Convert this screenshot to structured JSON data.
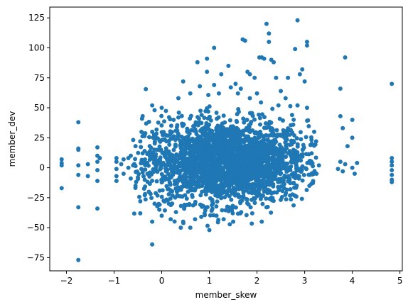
{
  "chart_data": {
    "type": "scatter",
    "title": "",
    "xlabel": "member_skew",
    "ylabel": "member_dev",
    "xlim": [
      -2.35,
      5.05
    ],
    "ylim": [
      -86,
      134
    ],
    "xticks": [
      -2,
      -1,
      0,
      1,
      2,
      3,
      4,
      5
    ],
    "yticks": [
      -75,
      -50,
      -25,
      0,
      25,
      50,
      75,
      100,
      125
    ],
    "grid": false,
    "legend": "none",
    "point_color": "#1f77b4",
    "series": [
      {
        "points": [
          [
            -2.1,
            7
          ],
          [
            -2.1,
            4
          ],
          [
            -2.1,
            2
          ],
          [
            -2.1,
            -17
          ],
          [
            -1.75,
            38
          ],
          [
            -1.75,
            16
          ],
          [
            -1.75,
            15
          ],
          [
            -1.75,
            2
          ],
          [
            -1.75,
            -6
          ],
          [
            -1.75,
            -33
          ],
          [
            -1.75,
            -77
          ],
          [
            -1.55,
            3
          ],
          [
            -1.55,
            -7
          ],
          [
            -1.35,
            17
          ],
          [
            -1.35,
            10
          ],
          [
            -1.35,
            5
          ],
          [
            -1.35,
            -2
          ],
          [
            -1.35,
            -11
          ],
          [
            -1.35,
            -34
          ],
          [
            -1.3,
            8
          ],
          [
            -0.95,
            8
          ],
          [
            -0.95,
            5
          ],
          [
            -0.95,
            -1
          ],
          [
            -0.95,
            -7
          ],
          [
            -0.95,
            -11
          ],
          [
            -0.85,
            3
          ],
          [
            -0.8,
            -5
          ],
          [
            -0.8,
            7
          ],
          [
            -0.7,
            0
          ],
          [
            -0.7,
            8
          ],
          [
            -0.65,
            -9
          ],
          [
            -0.65,
            10
          ],
          [
            -0.6,
            2
          ],
          [
            -0.55,
            -15
          ],
          [
            -0.55,
            18
          ],
          [
            -0.5,
            -8
          ],
          [
            -0.45,
            -38
          ],
          [
            -0.45,
            22
          ],
          [
            -0.45,
            -28
          ],
          [
            -0.4,
            43
          ],
          [
            -0.4,
            12
          ],
          [
            -0.35,
            -22
          ],
          [
            -0.3,
            -5
          ],
          [
            -0.2,
            -64
          ],
          [
            -0.2,
            52
          ],
          [
            -0.2,
            30
          ],
          [
            -0.2,
            -45
          ],
          [
            -0.15,
            48
          ],
          [
            -0.15,
            -30
          ],
          [
            -0.1,
            15
          ],
          [
            -0.05,
            -35
          ],
          [
            0.0,
            50
          ],
          [
            0.0,
            -40
          ],
          [
            0.05,
            -28
          ],
          [
            0.1,
            22
          ],
          [
            0.15,
            -30
          ],
          [
            0.2,
            -8
          ],
          [
            0.2,
            35
          ],
          [
            0.25,
            40
          ],
          [
            0.3,
            -37
          ],
          [
            0.35,
            58
          ],
          [
            0.4,
            -50
          ],
          [
            0.45,
            -45
          ],
          [
            0.45,
            72
          ],
          [
            0.5,
            25
          ],
          [
            0.6,
            -50
          ],
          [
            0.6,
            62
          ],
          [
            0.7,
            -43
          ],
          [
            0.75,
            88
          ],
          [
            0.8,
            68
          ],
          [
            0.9,
            -38
          ],
          [
            0.95,
            80
          ],
          [
            0.95,
            91
          ],
          [
            1.0,
            -52
          ],
          [
            1.1,
            100
          ],
          [
            1.1,
            69
          ],
          [
            1.15,
            -40
          ],
          [
            1.2,
            62
          ],
          [
            1.25,
            78
          ],
          [
            1.3,
            -43
          ],
          [
            1.4,
            85
          ],
          [
            1.45,
            67
          ],
          [
            1.5,
            -45
          ],
          [
            1.55,
            70
          ],
          [
            1.6,
            62
          ],
          [
            1.65,
            -38
          ],
          [
            1.7,
            107
          ],
          [
            1.75,
            106
          ],
          [
            1.8,
            80
          ],
          [
            1.85,
            78
          ],
          [
            1.85,
            58
          ],
          [
            1.9,
            -38
          ],
          [
            1.95,
            75
          ],
          [
            2.0,
            62
          ],
          [
            2.05,
            92
          ],
          [
            2.1,
            92
          ],
          [
            2.15,
            91
          ],
          [
            2.2,
            120
          ],
          [
            2.25,
            112
          ],
          [
            2.25,
            105
          ],
          [
            2.3,
            90
          ],
          [
            2.1,
            -45
          ],
          [
            2.2,
            -33
          ],
          [
            2.3,
            -25
          ],
          [
            2.35,
            88
          ],
          [
            2.4,
            75
          ],
          [
            2.45,
            52
          ],
          [
            2.5,
            64
          ],
          [
            2.6,
            58
          ],
          [
            2.65,
            75
          ],
          [
            2.7,
            -18
          ],
          [
            2.8,
            99
          ],
          [
            2.85,
            123
          ],
          [
            2.85,
            52
          ],
          [
            2.9,
            78
          ],
          [
            2.95,
            82
          ],
          [
            3.0,
            72
          ],
          [
            3.05,
            105
          ],
          [
            3.05,
            102
          ],
          [
            3.05,
            50
          ],
          [
            3.1,
            -15
          ],
          [
            3.15,
            20
          ],
          [
            3.2,
            30
          ],
          [
            3.25,
            -5
          ],
          [
            3.3,
            2
          ],
          [
            3.75,
            66
          ],
          [
            3.75,
            43
          ],
          [
            3.8,
            33
          ],
          [
            3.85,
            92
          ],
          [
            3.9,
            18
          ],
          [
            3.7,
            -1
          ],
          [
            3.75,
            5
          ],
          [
            3.8,
            -3
          ],
          [
            3.85,
            3
          ],
          [
            4.0,
            40
          ],
          [
            4.0,
            25
          ],
          [
            4.0,
            0
          ],
          [
            4.05,
            -5
          ],
          [
            4.1,
            4
          ],
          [
            4.83,
            70
          ],
          [
            4.83,
            8
          ],
          [
            4.83,
            5
          ],
          [
            4.83,
            2
          ],
          [
            4.83,
            -2
          ],
          [
            4.83,
            -6
          ],
          [
            4.83,
            -10
          ],
          [
            4.83,
            -12
          ]
        ]
      }
    ],
    "cloud": {
      "count": 2600,
      "x_center": 1.35,
      "x_spread": 0.85,
      "y_center": 5,
      "y_spread": 17,
      "x_range": [
        -0.6,
        3.25
      ],
      "y_range": [
        -52,
        70
      ]
    }
  }
}
